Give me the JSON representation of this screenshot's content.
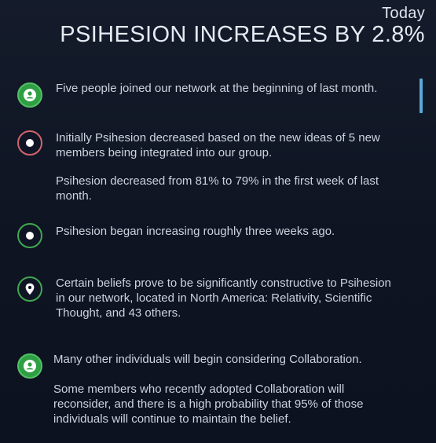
{
  "header": {
    "date_label": "Today",
    "headline": "PSIHESION INCREASES BY 2.8%"
  },
  "colors": {
    "background": "#0e1422",
    "green": "#3fa84f",
    "red_ring": "#d0646b",
    "accent_scroll": "#5aa9d6"
  },
  "timeline": [
    {
      "icon": "person-icon",
      "paragraphs": [
        "Five people joined our network at the beginning of last month."
      ]
    },
    {
      "icon": "dot-icon",
      "paragraphs": [
        "Initially Psihesion decreased based on the new ideas of 5 new members being integrated into our group.",
        "Psihesion decreased from 81% to 79% in the first week of last month."
      ]
    },
    {
      "icon": "dot-icon",
      "paragraphs": [
        "Psihesion began increasing roughly three weeks ago."
      ]
    },
    {
      "icon": "location-pin-icon",
      "paragraphs": [
        "Certain beliefs prove to be significantly constructive to Psihesion in our network, located in North America: Relativity, Scientific Thought, and 43 others."
      ]
    },
    {
      "icon": "person-icon",
      "paragraphs": [
        "Many other individuals will begin considering Collaboration.",
        "Some members who recently adopted Collaboration will reconsider, and there is a high probability that 95% of those individuals will continue to maintain the belief."
      ]
    }
  ]
}
